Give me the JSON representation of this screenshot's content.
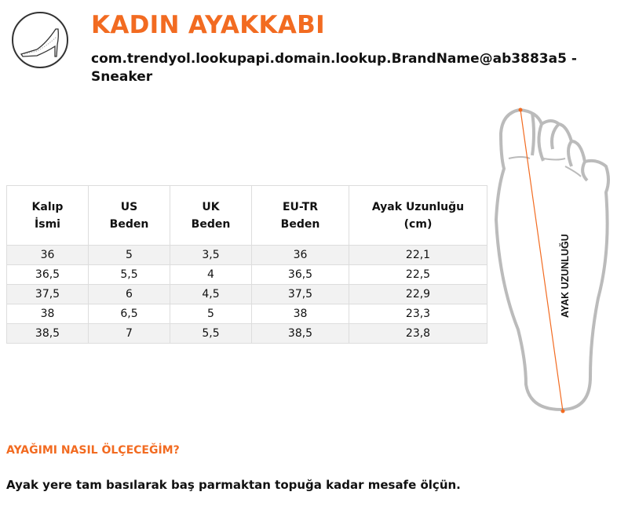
{
  "header": {
    "title": "KADIN AYAKKABI",
    "subtitle": "com.trendyol.lookupapi.domain.lookup.BrandName@ab3883a5 - Sneaker",
    "icon": "high-heel-shoe-icon"
  },
  "table": {
    "headers": [
      [
        "Kalıp",
        "İsmi"
      ],
      [
        "US",
        "Beden"
      ],
      [
        "UK",
        "Beden"
      ],
      [
        "EU-TR",
        "Beden"
      ],
      [
        "Ayak Uzunluğu",
        "(cm)"
      ]
    ],
    "rows": [
      [
        "36",
        "5",
        "3,5",
        "36",
        "22,1"
      ],
      [
        "36,5",
        "5,5",
        "4",
        "36,5",
        "22,5"
      ],
      [
        "37,5",
        "6",
        "4,5",
        "37,5",
        "22,9"
      ],
      [
        "38",
        "6,5",
        "5",
        "38",
        "23,3"
      ],
      [
        "38,5",
        "7",
        "5,5",
        "38,5",
        "23,8"
      ]
    ]
  },
  "diagram": {
    "label": "AYAK UZUNLUĞU",
    "line_color": "#f26b21"
  },
  "howto": {
    "question": "AYAĞIMI NASIL ÖLÇECEĞİM?",
    "answer": "Ayak yere tam basılarak baş parmaktan topuğa kadar mesafe ölçün."
  },
  "colors": {
    "accent": "#f26b21",
    "row_alt": "#f2f2f2"
  }
}
